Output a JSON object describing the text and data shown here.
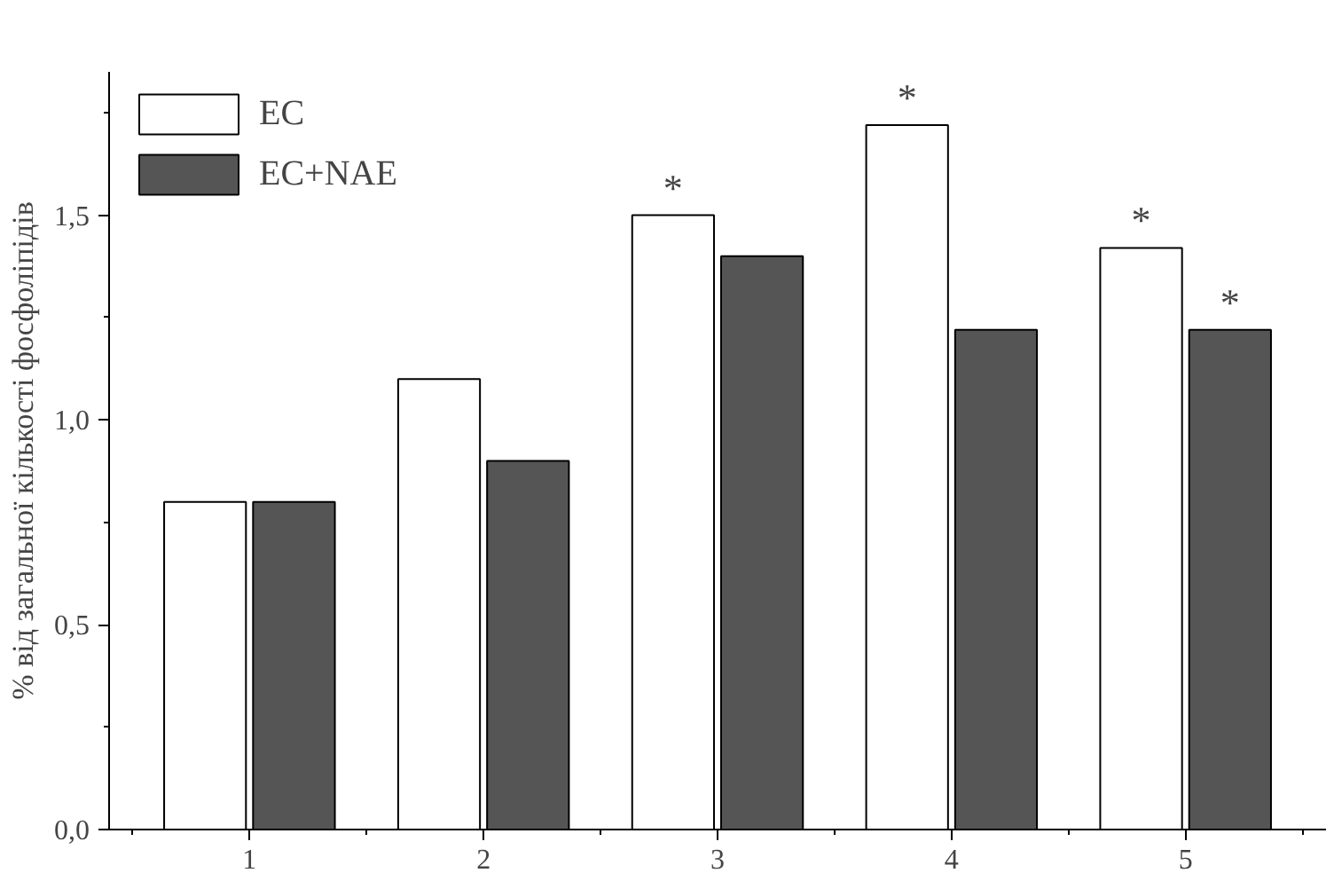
{
  "chart_data": {
    "type": "bar",
    "ylabel": "% від загальної кількості фосфоліпідів",
    "categories": [
      "1",
      "2",
      "3",
      "4",
      "5"
    ],
    "series": [
      {
        "name": "EC",
        "color": "#ffffff",
        "values": [
          0.8,
          1.1,
          1.5,
          1.72,
          1.42
        ]
      },
      {
        "name": "EC+NAE",
        "color": "#555555",
        "values": [
          0.8,
          0.9,
          1.4,
          1.22,
          1.22
        ]
      }
    ],
    "ylim": [
      0,
      1.85
    ],
    "yticks": [
      {
        "value": 0,
        "label": "0,0"
      },
      {
        "value": 0.5,
        "label": "0,5"
      },
      {
        "value": 1.0,
        "label": "1,0"
      },
      {
        "value": 1.5,
        "label": "1,5"
      }
    ],
    "grid": false,
    "legend": "top left",
    "annotations": [
      {
        "text": "*",
        "x": "3",
        "y": 1.5
      },
      {
        "text": "*",
        "x": "4",
        "y": 1.72
      },
      {
        "text": "*",
        "x": "5",
        "y": 1.42
      },
      {
        "text": "*",
        "x": "5",
        "y": 1.22
      }
    ]
  }
}
